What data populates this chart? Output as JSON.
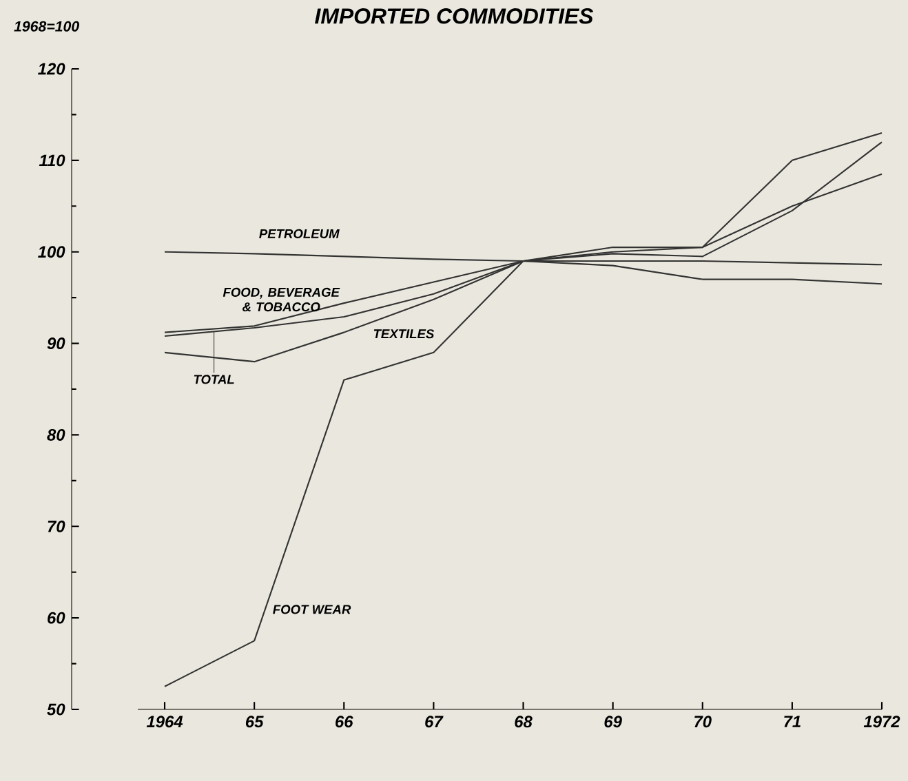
{
  "chart_data": {
    "type": "line",
    "title": "IMPORTED COMMODITIES",
    "ylabel": "1968=100",
    "x": [
      1964,
      1965,
      1966,
      1967,
      1968,
      1969,
      1970,
      1971,
      1972
    ],
    "series": [
      {
        "name": "PETROLEUM",
        "color": "#333333",
        "values": [
          100,
          99.8,
          99.5,
          99.2,
          99,
          99,
          99,
          98.8,
          98.6
        ]
      },
      {
        "name": "FOOD, BEVERAGE & TOBACCO",
        "color": "#333333",
        "values": [
          91.2,
          91.9,
          94.4,
          96.7,
          99,
          98.5,
          97,
          97,
          96.5
        ]
      },
      {
        "name": "TOTAL",
        "color": "#333333",
        "values": [
          90.8,
          91.7,
          92.9,
          95.4,
          99,
          100,
          100.5,
          105,
          108.5
        ]
      },
      {
        "name": "TEXTILES",
        "color": "#333333",
        "values": [
          89,
          88,
          91.2,
          94.8,
          99,
          99.8,
          99.5,
          104.5,
          112
        ]
      },
      {
        "name": "FOOT WEAR",
        "color": "#333333",
        "values": [
          52.5,
          57.5,
          86,
          89,
          99,
          100.5,
          100.5,
          110,
          113
        ]
      }
    ],
    "xlim": [
      1963.7,
      1972
    ],
    "xticks": [
      {
        "value": 1964,
        "label": "1964"
      },
      {
        "value": 1965,
        "label": "65"
      },
      {
        "value": 1966,
        "label": "66"
      },
      {
        "value": 1967,
        "label": "67"
      },
      {
        "value": 1968,
        "label": "68"
      },
      {
        "value": 1969,
        "label": "69"
      },
      {
        "value": 1970,
        "label": "70"
      },
      {
        "value": 1971,
        "label": "71"
      },
      {
        "value": 1972,
        "label": "1972"
      }
    ],
    "ylim": [
      50,
      120
    ],
    "yticks": [
      50,
      60,
      70,
      80,
      90,
      100,
      110,
      120
    ],
    "grid": false,
    "legend": false,
    "marker": "none",
    "line_style": "solid"
  }
}
